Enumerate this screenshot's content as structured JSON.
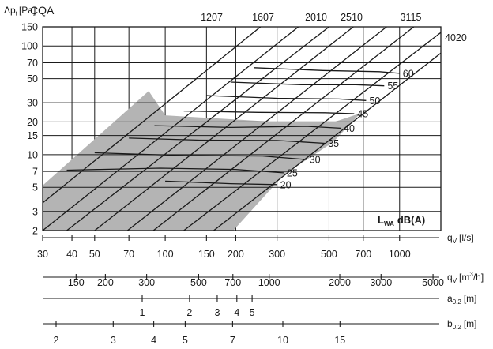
{
  "chart_data": {
    "type": "line",
    "title": "CQA",
    "ylabel": "Δp",
    "ylabel_sub": "t",
    "ylabel_unit": "[Pa]",
    "y_scale": "log",
    "ylim": [
      2,
      150
    ],
    "y_ticks": [
      2,
      3,
      5,
      7,
      10,
      15,
      20,
      30,
      50,
      70,
      100,
      150
    ],
    "x_scale": "log",
    "xlim": [
      30,
      1500
    ],
    "x_axes": [
      {
        "name": "qv_ls",
        "label": "q",
        "label_sub": "V",
        "label_unit": "[l/s]",
        "ticks": [
          30,
          40,
          50,
          70,
          100,
          150,
          200,
          300,
          500,
          700,
          1000
        ]
      },
      {
        "name": "qv_m3h",
        "label": "q",
        "label_sub": "V",
        "label_unit": "[m",
        "label_sup": "3",
        "label_unit2": "/h]",
        "ticks": [
          150,
          200,
          300,
          500,
          700,
          1000,
          2000,
          3000,
          5000
        ]
      },
      {
        "name": "a02",
        "label": "a",
        "label_sub": "0.2",
        "label_unit": "[m]",
        "ticks": [
          1,
          2,
          3,
          4,
          5
        ]
      },
      {
        "name": "b02",
        "label": "b",
        "label_sub": "0.2",
        "label_unit": "[m]",
        "ticks": [
          2,
          3,
          4,
          5,
          7,
          10,
          15
        ]
      }
    ],
    "size_lines": {
      "labels": [
        "1207",
        "1607",
        "2010",
        "2510",
        "3115",
        "4020"
      ],
      "lines": [
        {
          "x1": 30,
          "y1": 3.6,
          "x2": 255,
          "y2": 150
        },
        {
          "x1": 30,
          "y1": 2,
          "x2": 370,
          "y2": 150
        },
        {
          "x1": 38,
          "y1": 2,
          "x2": 500,
          "y2": 150
        },
        {
          "x1": 50,
          "y1": 2,
          "x2": 635,
          "y2": 150
        },
        {
          "x1": 69,
          "y1": 2,
          "x2": 880,
          "y2": 150
        },
        {
          "x1": 89,
          "y1": 2,
          "x2": 1150,
          "y2": 150
        },
        {
          "x1": 120,
          "y1": 2,
          "x2": 1500,
          "y2": 133
        },
        {
          "x1": 161,
          "y1": 2,
          "x2": 1500,
          "y2": 86
        }
      ]
    },
    "noise_label": "L",
    "noise_label_sub": "WA",
    "noise_label_unit": "dB(A)",
    "noise_curves": [
      {
        "name": "20",
        "points": [
          [
            100,
            5.7
          ],
          [
            190,
            5.4
          ],
          [
            300,
            5.3
          ]
        ]
      },
      {
        "name": "25",
        "points": [
          [
            38,
            7.2
          ],
          [
            95,
            7.5
          ],
          [
            200,
            7.3
          ],
          [
            320,
            6.8
          ]
        ]
      },
      {
        "name": "30",
        "points": [
          [
            50,
            10.4
          ],
          [
            120,
            9.8
          ],
          [
            260,
            9.7
          ],
          [
            400,
            9.0
          ]
        ]
      },
      {
        "name": "35",
        "points": [
          [
            70,
            14.2
          ],
          [
            140,
            13.6
          ],
          [
            300,
            13.5
          ],
          [
            480,
            12.7
          ]
        ]
      },
      {
        "name": "40",
        "points": [
          [
            90,
            18.5
          ],
          [
            190,
            17.8
          ],
          [
            400,
            18.2
          ],
          [
            560,
            17.5
          ]
        ]
      },
      {
        "name": "45",
        "points": [
          [
            120,
            25.2
          ],
          [
            250,
            24.5
          ],
          [
            480,
            24.3
          ],
          [
            640,
            23.8
          ]
        ]
      },
      {
        "name": "50",
        "points": [
          [
            150,
            35.0
          ],
          [
            300,
            33.0
          ],
          [
            550,
            32.5
          ],
          [
            720,
            31.5
          ]
        ]
      },
      {
        "name": "55",
        "points": [
          [
            190,
            46.5
          ],
          [
            380,
            44.0
          ],
          [
            650,
            44.0
          ],
          [
            860,
            43.0
          ]
        ]
      },
      {
        "name": "60",
        "points": [
          [
            240,
            63.0
          ],
          [
            470,
            59.5
          ],
          [
            820,
            58.0
          ],
          [
            1000,
            56.0
          ]
        ]
      }
    ],
    "shaded_region": [
      [
        30,
        2
      ],
      [
        30,
        5.2
      ],
      [
        85,
        38.5
      ],
      [
        100,
        23
      ],
      [
        320,
        19.8
      ],
      [
        520,
        19.8
      ],
      [
        680,
        24
      ],
      [
        520,
        13
      ],
      [
        320,
        6.5
      ],
      [
        195,
        2
      ]
    ],
    "colors": {
      "shade": "#b4b4b4",
      "line": "#1a1a1a",
      "grid": "#1a1a1a",
      "background": "#ffffff"
    }
  }
}
